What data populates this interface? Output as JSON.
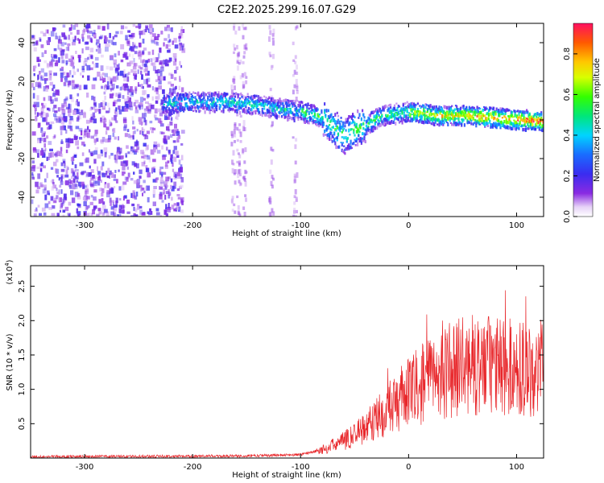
{
  "title": "C2E2.2025.299.16.07.G29",
  "chart_data": [
    {
      "type": "heatmap",
      "xlabel": "Height of straight line (km)",
      "ylabel": "Frequency (Hz)",
      "xlim": [
        -350,
        125
      ],
      "ylim": [
        -50,
        50
      ],
      "x_ticks": [
        -300,
        -200,
        -100,
        0,
        100
      ],
      "y_ticks": [
        -40,
        -20,
        0,
        20,
        40
      ],
      "colorbar": {
        "label": "Normalized spectral amplitude",
        "range": [
          0,
          0.95
        ],
        "ticks": [
          "0.0",
          "0.2",
          "0.4",
          "0.6",
          "0.8"
        ],
        "tick_values": [
          0.0,
          0.2,
          0.4,
          0.6,
          0.8
        ]
      },
      "ridge": {
        "x": [
          -225,
          -200,
          -175,
          -150,
          -125,
          -100,
          -80,
          -70,
          -60,
          -50,
          -40,
          -25,
          0,
          25,
          50,
          75,
          100,
          125
        ],
        "y": [
          9,
          10,
          10,
          9,
          7,
          5,
          2,
          -3,
          -8,
          -4,
          -2,
          3,
          5,
          3,
          3,
          2,
          1,
          0
        ]
      }
    },
    {
      "type": "line",
      "xlabel": "Height of straight line (km)",
      "ylabel": "SNR (10 * v/v)",
      "y_exponent_base": "(x10",
      "y_exponent_power": "4",
      "y_exponent_close": ")",
      "xlim": [
        -350,
        125
      ],
      "ylim": [
        0,
        2.8
      ],
      "x_ticks": [
        -300,
        -200,
        -100,
        0,
        100
      ],
      "y_ticks": [
        "0.5",
        "1.0",
        "1.5",
        "2.0",
        "2.5"
      ],
      "y_tick_values": [
        0.5,
        1.0,
        1.5,
        2.0,
        2.5
      ],
      "trend": {
        "x": [
          -350,
          -150,
          -100,
          -80,
          -60,
          -40,
          -20,
          0,
          20,
          40,
          60,
          80,
          100,
          125
        ],
        "y": [
          0.02,
          0.03,
          0.05,
          0.12,
          0.25,
          0.45,
          0.7,
          0.95,
          1.15,
          1.3,
          1.35,
          1.35,
          1.3,
          1.3
        ]
      },
      "color": "#e8262a"
    }
  ]
}
